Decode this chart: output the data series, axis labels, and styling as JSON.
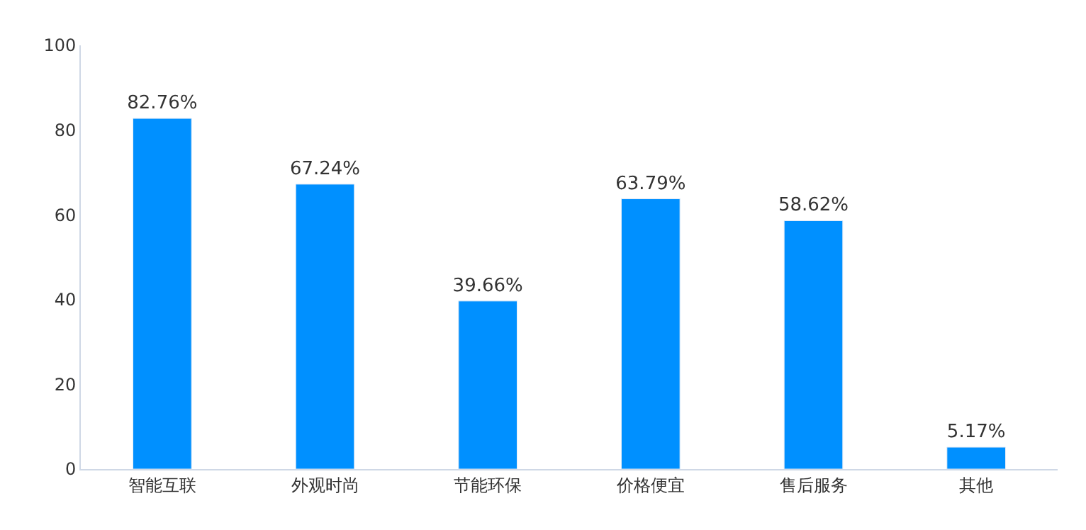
{
  "chart_data": {
    "type": "bar",
    "categories": [
      "智能互联",
      "外观时尚",
      "节能环保",
      "价格便宜",
      "售后服务",
      "其他"
    ],
    "values": [
      82.76,
      67.24,
      39.66,
      63.79,
      58.62,
      5.17
    ],
    "value_labels": [
      "82.76%",
      "67.24%",
      "39.66%",
      "63.79%",
      "58.62%",
      "5.17%"
    ],
    "color": "#0090ff",
    "ylim": [
      0,
      100
    ],
    "yticks": [
      0,
      20,
      40,
      60,
      80,
      100
    ],
    "grid": false
  }
}
